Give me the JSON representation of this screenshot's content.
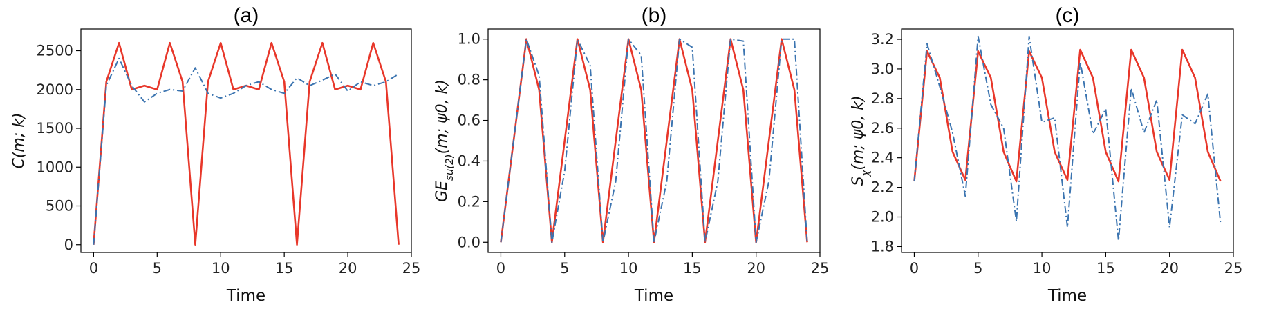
{
  "colors": {
    "red": "#e8372a",
    "blue": "#3b74b0"
  },
  "chart_data": [
    {
      "type": "line",
      "title": "(a)",
      "xlabel": "Time",
      "ylabel": "C(m; k)",
      "xlim": [
        -1,
        25
      ],
      "ylim": [
        -100,
        2780
      ],
      "xticks": [
        0,
        5,
        10,
        15,
        20,
        25
      ],
      "yticks": [
        0,
        500,
        1000,
        1500,
        2000,
        2500
      ],
      "series": [
        {
          "style": "solid",
          "color": "#e8372a",
          "x": [
            0,
            1,
            2,
            3,
            4,
            5,
            6,
            7,
            8,
            9,
            10,
            11,
            12,
            13,
            14,
            15,
            16,
            17,
            18,
            19,
            20,
            21,
            22,
            23,
            24
          ],
          "y": [
            0,
            2100,
            2600,
            2000,
            2050,
            2000,
            2600,
            2100,
            0,
            2100,
            2600,
            2000,
            2050,
            2000,
            2600,
            2100,
            0,
            2100,
            2600,
            2000,
            2050,
            2000,
            2600,
            2100,
            0
          ]
        },
        {
          "style": "dashdot",
          "color": "#3b74b0",
          "x": [
            0,
            1,
            2,
            3,
            4,
            5,
            6,
            7,
            8,
            9,
            10,
            11,
            12,
            13,
            14,
            15,
            16,
            17,
            18,
            19,
            20,
            21,
            22,
            23,
            24
          ],
          "y": [
            0,
            2050,
            2400,
            2050,
            1840,
            1950,
            2000,
            1980,
            2280,
            1950,
            1890,
            1950,
            2050,
            2100,
            2000,
            1950,
            2150,
            2050,
            2120,
            2200,
            1980,
            2100,
            2050,
            2100,
            2200
          ]
        }
      ]
    },
    {
      "type": "line",
      "title": "(b)",
      "xlabel": "Time",
      "ylabel": "GE_su(2)(m; ψ0, k)",
      "xlim": [
        -1,
        25
      ],
      "ylim": [
        -0.05,
        1.05
      ],
      "xticks": [
        0,
        5,
        10,
        15,
        20,
        25
      ],
      "yticks": [
        "0.0",
        "0.2",
        "0.4",
        "0.6",
        "0.8",
        "1.0"
      ],
      "series": [
        {
          "style": "solid",
          "color": "#e8372a",
          "x": [
            0,
            1,
            2,
            3,
            4,
            5,
            6,
            7,
            8,
            9,
            10,
            11,
            12,
            13,
            14,
            15,
            16,
            17,
            18,
            19,
            20,
            21,
            22,
            23,
            24
          ],
          "y": [
            0,
            0.5,
            1.0,
            0.75,
            0,
            0.5,
            1.0,
            0.75,
            0,
            0.5,
            1.0,
            0.75,
            0,
            0.5,
            1.0,
            0.75,
            0,
            0.5,
            1.0,
            0.75,
            0,
            0.5,
            1.0,
            0.75,
            0
          ]
        },
        {
          "style": "dashdot",
          "color": "#3b74b0",
          "x": [
            0,
            1,
            2,
            3,
            4,
            5,
            6,
            7,
            8,
            9,
            10,
            11,
            12,
            13,
            14,
            15,
            16,
            17,
            18,
            19,
            20,
            21,
            22,
            23,
            24
          ],
          "y": [
            0,
            0.5,
            1.0,
            0.82,
            0,
            0.35,
            1.0,
            0.87,
            0,
            0.3,
            1.0,
            0.92,
            0,
            0.3,
            1.0,
            0.96,
            0,
            0.3,
            1.0,
            0.99,
            0,
            0.3,
            1.0,
            1.0,
            0
          ]
        }
      ]
    },
    {
      "type": "line",
      "title": "(c)",
      "xlabel": "Time",
      "ylabel": "S_χ(m; ψ0, k)",
      "xlim": [
        -1,
        25
      ],
      "ylim": [
        1.76,
        3.27
      ],
      "xticks": [
        0,
        5,
        10,
        15,
        20,
        25
      ],
      "yticks": [
        "1.8",
        "2.0",
        "2.2",
        "2.4",
        "2.6",
        "2.8",
        "3.0",
        "3.2"
      ],
      "series": [
        {
          "style": "solid",
          "color": "#e8372a",
          "x": [
            0,
            1,
            2,
            3,
            4,
            5,
            6,
            7,
            8,
            9,
            10,
            11,
            12,
            13,
            14,
            15,
            16,
            17,
            18,
            19,
            20,
            21,
            22,
            23,
            24
          ],
          "y": [
            2.24,
            3.12,
            2.94,
            2.44,
            2.25,
            3.12,
            2.94,
            2.44,
            2.24,
            3.12,
            2.94,
            2.44,
            2.25,
            3.13,
            2.94,
            2.44,
            2.24,
            3.13,
            2.94,
            2.44,
            2.25,
            3.13,
            2.94,
            2.44,
            2.24
          ]
        },
        {
          "style": "dashdot",
          "color": "#3b74b0",
          "x": [
            0,
            1,
            2,
            3,
            4,
            5,
            6,
            7,
            8,
            9,
            10,
            11,
            12,
            13,
            14,
            15,
            16,
            17,
            18,
            19,
            20,
            21,
            22,
            23,
            24
          ],
          "y": [
            2.24,
            3.17,
            2.88,
            2.57,
            2.14,
            3.22,
            2.76,
            2.6,
            1.97,
            3.22,
            2.64,
            2.67,
            1.93,
            3.05,
            2.56,
            2.73,
            1.84,
            2.87,
            2.57,
            2.79,
            1.93,
            2.69,
            2.63,
            2.83,
            1.95
          ]
        }
      ]
    }
  ]
}
